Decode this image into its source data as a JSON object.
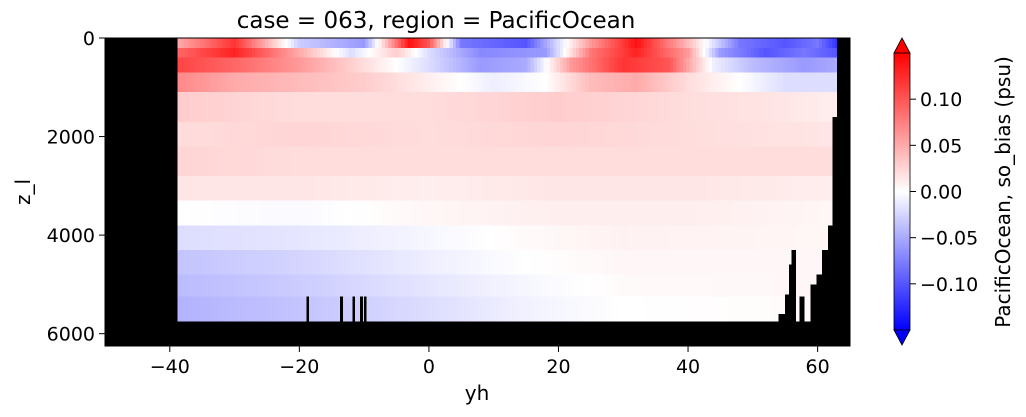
{
  "chart_data": {
    "type": "heatmap",
    "title": "case = 063, region = PacificOcean",
    "xlabel": "yh",
    "ylabel": "z_l",
    "xlim": [
      -50,
      65
    ],
    "ylim": [
      6250,
      0
    ],
    "x_ticks": [
      -40,
      -20,
      0,
      20,
      40,
      60
    ],
    "x_tick_labels": [
      "−40",
      "−20",
      "0",
      "20",
      "40",
      "60"
    ],
    "y_ticks": [
      0,
      2000,
      4000,
      6000
    ],
    "y_tick_labels": [
      "0",
      "2000",
      "4000",
      "6000"
    ],
    "colorbar": {
      "label": "PacificOcean, so_bias (psu)",
      "vmin": -0.15,
      "vmax": 0.15,
      "extend": "both",
      "colormap": "bwr",
      "ticks": [
        0.1,
        0.05,
        0.0,
        -0.05,
        -0.1
      ],
      "tick_labels": [
        "0.10",
        "0.05",
        "0.00",
        "−0.05",
        "−0.10"
      ]
    },
    "colors": {
      "positive": "#ff0000",
      "neutral": "#ffffff",
      "negative": "#0000ff",
      "land": "#000000"
    },
    "data_extent": {
      "y_start": -38.8,
      "y_end": 63,
      "depth_max": 5750
    },
    "depth_layers": [
      {
        "top": 0,
        "bottom": 200,
        "values": [
          [
            -38.8,
            0.05
          ],
          [
            -30,
            0.12
          ],
          [
            -20,
            -0.03
          ],
          [
            -10,
            -0.06
          ],
          [
            -3,
            0.14
          ],
          [
            0,
            0.1
          ],
          [
            5,
            -0.08
          ],
          [
            15,
            -0.1
          ],
          [
            25,
            0.06
          ],
          [
            32,
            0.14
          ],
          [
            40,
            0.04
          ],
          [
            48,
            -0.08
          ],
          [
            55,
            -0.1
          ],
          [
            60,
            -0.08
          ],
          [
            63,
            -0.12
          ]
        ]
      },
      {
        "top": 200,
        "bottom": 400,
        "values": [
          [
            -38.8,
            0.09
          ],
          [
            -30,
            0.13
          ],
          [
            -20,
            0.05
          ],
          [
            -12,
            -0.02
          ],
          [
            -5,
            0.03
          ],
          [
            0,
            -0.02
          ],
          [
            8,
            -0.07
          ],
          [
            18,
            -0.06
          ],
          [
            25,
            0.08
          ],
          [
            32,
            0.13
          ],
          [
            40,
            0.06
          ],
          [
            45,
            -0.06
          ],
          [
            52,
            -0.1
          ],
          [
            58,
            -0.08
          ],
          [
            63,
            -0.1
          ]
        ]
      },
      {
        "top": 400,
        "bottom": 700,
        "values": [
          [
            -38.8,
            0.11
          ],
          [
            -30,
            0.09
          ],
          [
            -20,
            0.06
          ],
          [
            -10,
            0.02
          ],
          [
            0,
            -0.02
          ],
          [
            8,
            -0.06
          ],
          [
            15,
            -0.05
          ],
          [
            22,
            0.06
          ],
          [
            30,
            0.12
          ],
          [
            37,
            0.1
          ],
          [
            44,
            -0.01
          ],
          [
            50,
            -0.04
          ],
          [
            58,
            -0.06
          ],
          [
            63,
            -0.05
          ]
        ]
      },
      {
        "top": 700,
        "bottom": 1100,
        "values": [
          [
            -38.8,
            0.07
          ],
          [
            -30,
            0.05
          ],
          [
            -20,
            0.04
          ],
          [
            -10,
            0.03
          ],
          [
            0,
            0.01
          ],
          [
            10,
            -0.01
          ],
          [
            18,
            0.0
          ],
          [
            25,
            0.04
          ],
          [
            32,
            0.05
          ],
          [
            40,
            0.02
          ],
          [
            48,
            0.0
          ],
          [
            55,
            -0.02
          ],
          [
            63,
            -0.02
          ]
        ]
      },
      {
        "top": 1100,
        "bottom": 1700,
        "values": [
          [
            -38.8,
            0.03
          ],
          [
            -20,
            0.02
          ],
          [
            0,
            0.02
          ],
          [
            20,
            0.03
          ],
          [
            40,
            0.02
          ],
          [
            55,
            0.015
          ],
          [
            63,
            0.01
          ]
        ]
      },
      {
        "top": 1700,
        "bottom": 2200,
        "values": [
          [
            -38.8,
            0.02
          ],
          [
            -20,
            0.025
          ],
          [
            0,
            0.02
          ],
          [
            20,
            0.025
          ],
          [
            40,
            0.02
          ],
          [
            63,
            0.015
          ]
        ]
      },
      {
        "top": 2200,
        "bottom": 2800,
        "values": [
          [
            -38.8,
            0.025
          ],
          [
            -20,
            0.02
          ],
          [
            0,
            0.02
          ],
          [
            20,
            0.02
          ],
          [
            40,
            0.02
          ],
          [
            63,
            0.02
          ]
        ]
      },
      {
        "top": 2800,
        "bottom": 3300,
        "values": [
          [
            -38.8,
            0.015
          ],
          [
            -20,
            0.015
          ],
          [
            0,
            0.01
          ],
          [
            20,
            0.015
          ],
          [
            40,
            0.015
          ],
          [
            63,
            0.01
          ]
        ]
      },
      {
        "top": 3300,
        "bottom": 3800,
        "values": [
          [
            -38.8,
            0.0
          ],
          [
            -20,
            -0.003
          ],
          [
            0,
            0.005
          ],
          [
            20,
            0.01
          ],
          [
            40,
            0.01
          ],
          [
            63,
            0.005
          ]
        ]
      },
      {
        "top": 3800,
        "bottom": 4300,
        "values": [
          [
            -38.8,
            -0.02
          ],
          [
            -20,
            -0.015
          ],
          [
            0,
            -0.005
          ],
          [
            15,
            0.003
          ],
          [
            30,
            0.008
          ],
          [
            63,
            0.005
          ]
        ]
      },
      {
        "top": 4300,
        "bottom": 4800,
        "values": [
          [
            -38.8,
            -0.035
          ],
          [
            -20,
            -0.025
          ],
          [
            0,
            -0.01
          ],
          [
            15,
            0.0
          ],
          [
            30,
            0.005
          ],
          [
            63,
            0.005
          ]
        ]
      },
      {
        "top": 4800,
        "bottom": 5250,
        "values": [
          [
            -38.8,
            -0.04
          ],
          [
            -20,
            -0.03
          ],
          [
            0,
            -0.015
          ],
          [
            15,
            -0.005
          ],
          [
            30,
            0.003
          ],
          [
            63,
            0.005
          ]
        ]
      },
      {
        "top": 5250,
        "bottom": 5750,
        "values": [
          [
            -38.8,
            -0.045
          ],
          [
            -20,
            -0.035
          ],
          [
            0,
            -0.02
          ],
          [
            15,
            -0.008
          ],
          [
            30,
            0.0
          ],
          [
            63,
            0.003
          ]
        ]
      }
    ],
    "land_masks": [
      {
        "x0": -50,
        "x1": -38.8,
        "z_top": 0
      },
      {
        "x0": -50,
        "x1": 65,
        "z_top": 5750
      },
      {
        "x0": 63,
        "x1": 65,
        "z_top": 0
      },
      {
        "x0": 62.3,
        "x1": 63,
        "z_top": 1600
      },
      {
        "x0": 61.6,
        "x1": 62.3,
        "z_top": 3800
      },
      {
        "x0": 60.7,
        "x1": 61.6,
        "z_top": 4300
      },
      {
        "x0": 59.8,
        "x1": 60.7,
        "z_top": 4800
      },
      {
        "x0": 58.9,
        "x1": 59.8,
        "z_top": 5000
      },
      {
        "x0": 57.2,
        "x1": 58.0,
        "z_top": 5250
      },
      {
        "x0": 56.0,
        "x1": 56.7,
        "z_top": 4300
      },
      {
        "x0": 55.0,
        "x1": 56.0,
        "z_top": 5200
      },
      {
        "x0": 54.0,
        "x1": 55.0,
        "z_top": 5600
      },
      {
        "x0": 55.6,
        "x1": 56.0,
        "z_top": 4600
      },
      {
        "x0": -18.9,
        "x1": -18.5,
        "z_top": 5250
      },
      {
        "x0": -13.7,
        "x1": -13.3,
        "z_top": 5250
      },
      {
        "x0": -11.8,
        "x1": -11.4,
        "z_top": 5250
      },
      {
        "x0": -10.6,
        "x1": -10.2,
        "z_top": 5250
      },
      {
        "x0": -10.0,
        "x1": -9.6,
        "z_top": 5250
      }
    ]
  }
}
